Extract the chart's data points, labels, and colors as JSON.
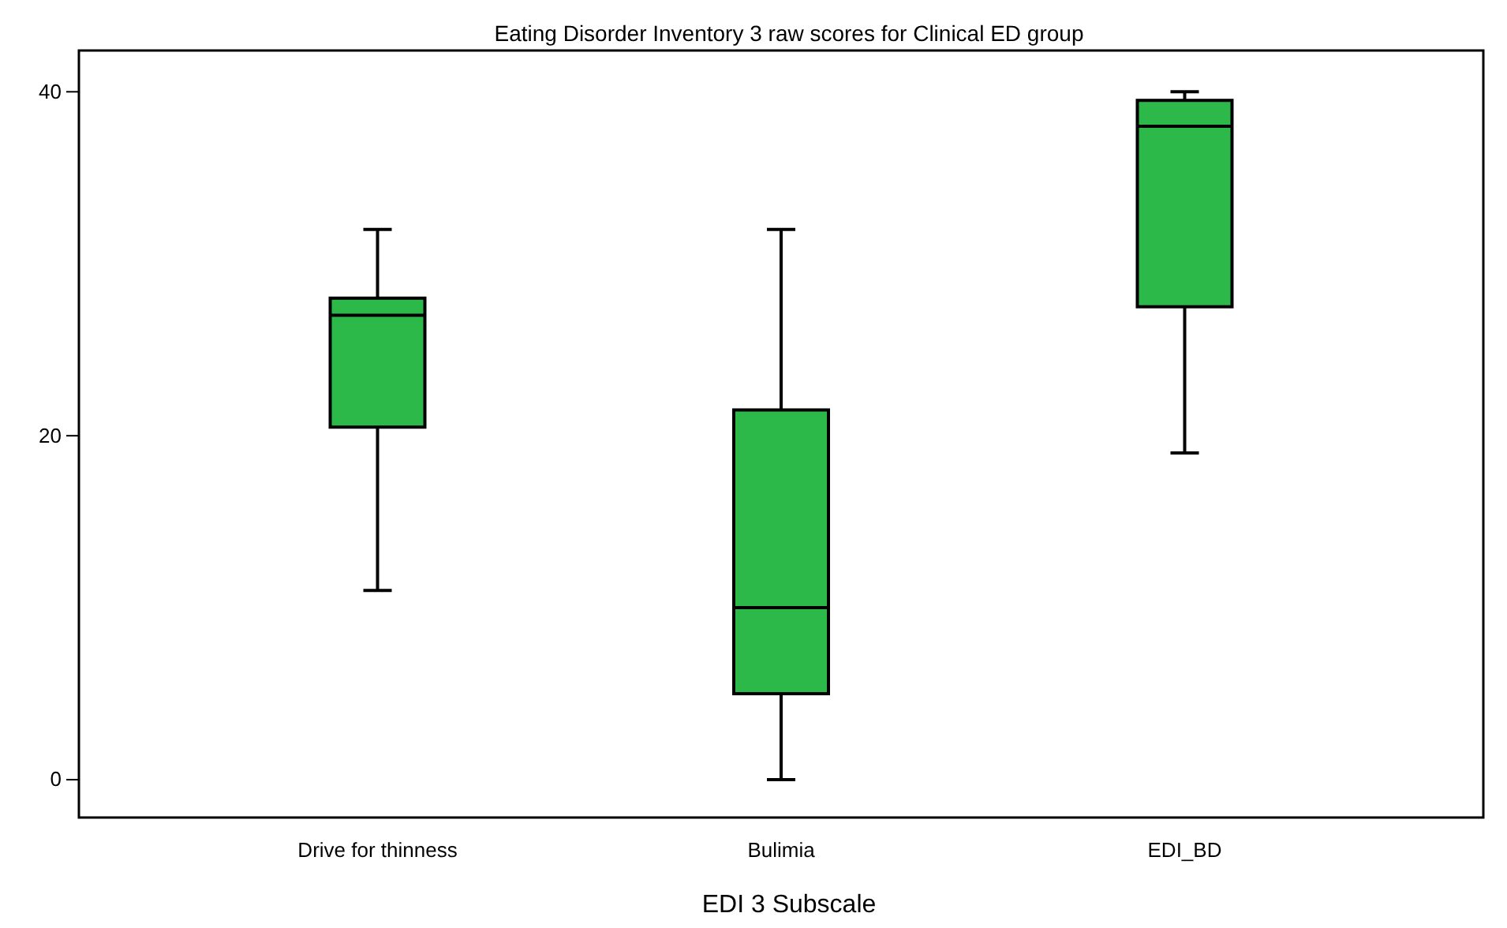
{
  "chart_data": {
    "type": "box",
    "title": "Eating Disorder Inventory 3 raw scores for Clinical ED group",
    "xlabel": "EDI 3 Subscale",
    "categories": [
      "Drive for thinness",
      "Bulimia",
      "EDI_BD"
    ],
    "series": [
      {
        "color": "#2db84a",
        "boxes": [
          {
            "low": 11,
            "q1": 20.5,
            "median": 27,
            "q3": 28,
            "high": 32
          },
          {
            "low": 0,
            "q1": 5,
            "median": 10,
            "q3": 21.5,
            "high": 32
          },
          {
            "low": 19,
            "q1": 27.5,
            "median": 38,
            "q3": 39.5,
            "high": 40
          }
        ]
      }
    ],
    "ylim": [
      -2.2,
      42.4
    ],
    "yticks": [
      0,
      20,
      40
    ],
    "grid": false
  }
}
